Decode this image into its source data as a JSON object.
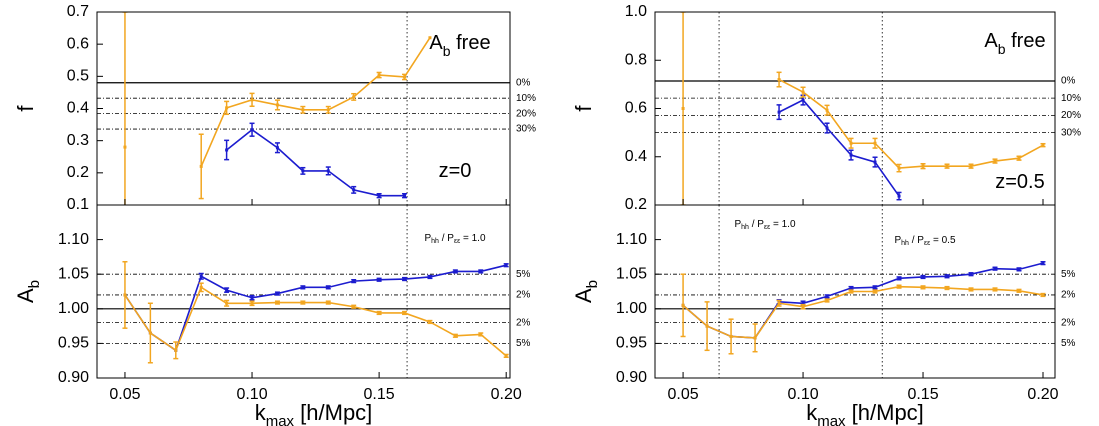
{
  "chart_data": [
    {
      "type": "line",
      "ylabel": [
        {
          "text": "f"
        }
      ],
      "x": [
        0.05,
        0.06,
        0.07,
        0.08,
        0.09,
        0.1,
        0.11,
        0.12,
        0.13,
        0.14,
        0.15,
        0.16,
        0.17,
        0.18,
        0.19,
        0.2
      ],
      "xlim": [
        0.039,
        0.2015
      ],
      "ylim": [
        0.1,
        0.7
      ],
      "yticks": [
        0.1,
        0.2,
        0.3,
        0.4,
        0.5,
        0.6,
        0.7
      ],
      "vlines": [
        0.161
      ],
      "hlines": [
        {
          "value": 0.48,
          "label": "0%",
          "style": "solid"
        },
        {
          "value": 0.432,
          "label": "10%",
          "style": "dashdot"
        },
        {
          "value": 0.384,
          "label": "20%",
          "style": "dashdot"
        },
        {
          "value": 0.336,
          "label": "30%",
          "style": "dashdot"
        }
      ],
      "annotations": [
        {
          "segments": [
            {
              "text": "A"
            },
            {
              "text": "b",
              "sub": true
            },
            {
              "text": " free"
            }
          ]
        },
        {
          "segments": [
            {
              "text": "z=0"
            }
          ]
        }
      ],
      "series": [
        {
          "color": "#1c1ccf",
          "values": [
            null,
            null,
            null,
            null,
            0.271,
            0.334,
            0.278,
            0.206,
            0.206,
            0.147,
            0.129,
            0.129,
            null,
            null,
            null,
            null
          ],
          "errors": [
            null,
            null,
            null,
            null,
            0.03,
            0.02,
            0.015,
            0.01,
            0.012,
            0.01,
            0.006,
            0.006,
            null,
            null,
            null,
            null
          ]
        },
        {
          "color": "#f2a620",
          "values": [
            0.28,
            null,
            null,
            0.22,
            0.402,
            0.427,
            0.411,
            0.396,
            0.396,
            0.436,
            0.504,
            0.498,
            0.62,
            null,
            null,
            null
          ],
          "errors": [
            0.42,
            null,
            null,
            0.1,
            0.02,
            0.02,
            0.015,
            0.01,
            0.01,
            0.01,
            0.008,
            0.008,
            null,
            null,
            null,
            null
          ]
        }
      ]
    },
    {
      "type": "line",
      "ylabel": [
        {
          "text": "A"
        },
        {
          "text": "b",
          "sub": true
        }
      ],
      "xlabel": [
        {
          "text": "k"
        },
        {
          "text": "max",
          "sub": true
        },
        {
          "text": " [h/Mpc]"
        }
      ],
      "x": [
        0.05,
        0.06,
        0.07,
        0.08,
        0.09,
        0.1,
        0.11,
        0.12,
        0.13,
        0.14,
        0.15,
        0.16,
        0.17,
        0.18,
        0.19,
        0.2
      ],
      "xlim": [
        0.039,
        0.2015
      ],
      "xticks": [
        0.05,
        {
          "value": 0.1,
          "label": "0.10"
        },
        0.15,
        {
          "value": 0.2,
          "label": "0.20"
        }
      ],
      "ylim": [
        0.9,
        1.15
      ],
      "yticks": [
        {
          "value": 0.9,
          "label": "0.90"
        },
        {
          "value": 0.95,
          "label": "0.95"
        },
        {
          "value": 1.0,
          "label": "1.00"
        },
        {
          "value": 1.05,
          "label": "1.05"
        },
        {
          "value": 1.1,
          "label": "1.10"
        }
      ],
      "vlines": [
        0.161
      ],
      "hlines": [
        {
          "value": 1.05,
          "label": "5%",
          "style": "dashdot"
        },
        {
          "value": 1.02,
          "label": "2%",
          "style": "dashdot"
        },
        {
          "value": 1.0,
          "style": "solid"
        },
        {
          "value": 0.98,
          "label": "2%",
          "style": "dashdot"
        },
        {
          "value": 0.95,
          "label": "5%",
          "style": "dashdot"
        }
      ],
      "annotations": [
        {
          "segments": [
            {
              "text": "P"
            },
            {
              "text": "hh",
              "sub": true
            },
            {
              "text": " / P"
            },
            {
              "text": "εε",
              "sub": true
            },
            {
              "text": " = 1.0"
            }
          ]
        }
      ],
      "series": [
        {
          "color": "#1c1ccf",
          "values": [
            1.02,
            0.965,
            0.94,
            1.047,
            1.027,
            1.016,
            1.022,
            1.031,
            1.031,
            1.04,
            1.042,
            1.043,
            1.046,
            1.054,
            1.054,
            1.063
          ],
          "errors": [
            null,
            null,
            null,
            0.004,
            0.003,
            0.003,
            0.002,
            0.002,
            0.002,
            0.002,
            0.002,
            0.002,
            0.002,
            0.002,
            0.002,
            0.002
          ]
        },
        {
          "color": "#f2a620",
          "values": [
            1.02,
            0.965,
            0.94,
            1.031,
            1.008,
            1.008,
            1.009,
            1.009,
            1.009,
            1.003,
            0.994,
            0.994,
            0.981,
            0.961,
            0.963,
            0.932
          ],
          "errors": [
            0.048,
            0.043,
            0.012,
            0.006,
            0.004,
            0.003,
            0.002,
            0.002,
            0.002,
            0.002,
            0.002,
            0.002,
            0.002,
            0.002,
            0.002,
            0.002
          ]
        }
      ]
    },
    {
      "type": "line",
      "ylabel": [
        {
          "text": "f"
        }
      ],
      "x": [
        0.05,
        0.06,
        0.07,
        0.08,
        0.09,
        0.1,
        0.11,
        0.12,
        0.13,
        0.14,
        0.15,
        0.16,
        0.17,
        0.18,
        0.19,
        0.2
      ],
      "xlim": [
        0.0383,
        0.205
      ],
      "ylim": [
        0.2,
        1.0
      ],
      "yticks": [
        0.2,
        0.4,
        0.6,
        0.8,
        {
          "value": 1.0,
          "label": "1.0"
        }
      ],
      "vlines": [
        0.065,
        0.133
      ],
      "hlines": [
        {
          "value": 0.714,
          "label": "0%",
          "style": "solid"
        },
        {
          "value": 0.643,
          "label": "10%",
          "style": "dashdot"
        },
        {
          "value": 0.571,
          "label": "20%",
          "style": "dashdot"
        },
        {
          "value": 0.5,
          "label": "30%",
          "style": "dashdot"
        }
      ],
      "annotations": [
        {
          "segments": [
            {
              "text": "A"
            },
            {
              "text": "b",
              "sub": true
            },
            {
              "text": " free"
            }
          ]
        },
        {
          "segments": [
            {
              "text": "z=0.5"
            }
          ]
        }
      ],
      "series": [
        {
          "color": "#1c1ccf",
          "values": [
            null,
            null,
            null,
            null,
            0.585,
            0.635,
            0.519,
            0.407,
            0.378,
            0.237,
            null,
            null,
            null,
            null,
            null,
            null
          ],
          "errors": [
            null,
            null,
            null,
            null,
            0.03,
            0.02,
            0.02,
            0.02,
            0.02,
            0.015,
            null,
            null,
            null,
            null,
            null,
            null
          ]
        },
        {
          "color": "#f2a620",
          "values": [
            0.6,
            null,
            null,
            null,
            0.72,
            0.668,
            0.593,
            0.456,
            0.456,
            0.353,
            0.361,
            0.361,
            0.361,
            0.382,
            0.394,
            0.448
          ],
          "errors": [
            0.4,
            null,
            null,
            null,
            0.03,
            0.02,
            0.02,
            0.02,
            0.02,
            0.015,
            0.01,
            0.008,
            0.008,
            0.008,
            0.008,
            0.006
          ]
        }
      ]
    },
    {
      "type": "line",
      "ylabel": [
        {
          "text": "A"
        },
        {
          "text": "b",
          "sub": true
        }
      ],
      "xlabel": [
        {
          "text": "k"
        },
        {
          "text": "max",
          "sub": true
        },
        {
          "text": " [h/Mpc]"
        }
      ],
      "x": [
        0.05,
        0.06,
        0.07,
        0.08,
        0.09,
        0.1,
        0.11,
        0.12,
        0.13,
        0.14,
        0.15,
        0.16,
        0.17,
        0.18,
        0.19,
        0.2
      ],
      "xlim": [
        0.0383,
        0.205
      ],
      "xticks": [
        0.05,
        {
          "value": 0.1,
          "label": "0.10"
        },
        0.15,
        {
          "value": 0.2,
          "label": "0.20"
        }
      ],
      "ylim": [
        0.9,
        1.15
      ],
      "yticks": [
        {
          "value": 0.9,
          "label": "0.90"
        },
        {
          "value": 0.95,
          "label": "0.95"
        },
        {
          "value": 1.0,
          "label": "1.00"
        },
        {
          "value": 1.05,
          "label": "1.05"
        },
        {
          "value": 1.1,
          "label": "1.10"
        }
      ],
      "vlines": [
        0.065,
        0.133
      ],
      "hlines": [
        {
          "value": 1.05,
          "label": "5%",
          "style": "dashdot"
        },
        {
          "value": 1.02,
          "label": "2%",
          "style": "dashdot"
        },
        {
          "value": 1.0,
          "style": "solid"
        },
        {
          "value": 0.98,
          "label": "2%",
          "style": "dashdot"
        },
        {
          "value": 0.95,
          "label": "5%",
          "style": "dashdot"
        }
      ],
      "annotations": [
        {
          "segments": [
            {
              "text": "P"
            },
            {
              "text": "hh",
              "sub": true
            },
            {
              "text": " / P"
            },
            {
              "text": "εε",
              "sub": true
            },
            {
              "text": " = 1.0"
            }
          ]
        },
        {
          "segments": [
            {
              "text": "P"
            },
            {
              "text": "hh",
              "sub": true
            },
            {
              "text": " / P"
            },
            {
              "text": "εε",
              "sub": true
            },
            {
              "text": " = 0.5"
            }
          ]
        }
      ],
      "series": [
        {
          "color": "#1c1ccf",
          "values": [
            1.005,
            0.975,
            0.96,
            0.958,
            1.01,
            1.008,
            1.018,
            1.03,
            1.031,
            1.044,
            1.046,
            1.047,
            1.05,
            1.058,
            1.057,
            1.066
          ],
          "errors": [
            null,
            null,
            null,
            null,
            0.003,
            0.003,
            0.002,
            0.002,
            0.002,
            0.002,
            0.002,
            0.002,
            0.002,
            0.002,
            0.002,
            0.002
          ]
        },
        {
          "color": "#f2a620",
          "values": [
            1.005,
            0.975,
            0.96,
            0.958,
            1.008,
            1.003,
            1.012,
            1.025,
            1.025,
            1.032,
            1.031,
            1.03,
            1.028,
            1.028,
            1.026,
            1.02
          ],
          "errors": [
            0.045,
            0.035,
            0.025,
            0.02,
            0.004,
            0.003,
            0.002,
            0.002,
            0.002,
            0.002,
            0.002,
            0.002,
            0.002,
            0.002,
            0.002,
            0.002
          ]
        }
      ]
    }
  ]
}
